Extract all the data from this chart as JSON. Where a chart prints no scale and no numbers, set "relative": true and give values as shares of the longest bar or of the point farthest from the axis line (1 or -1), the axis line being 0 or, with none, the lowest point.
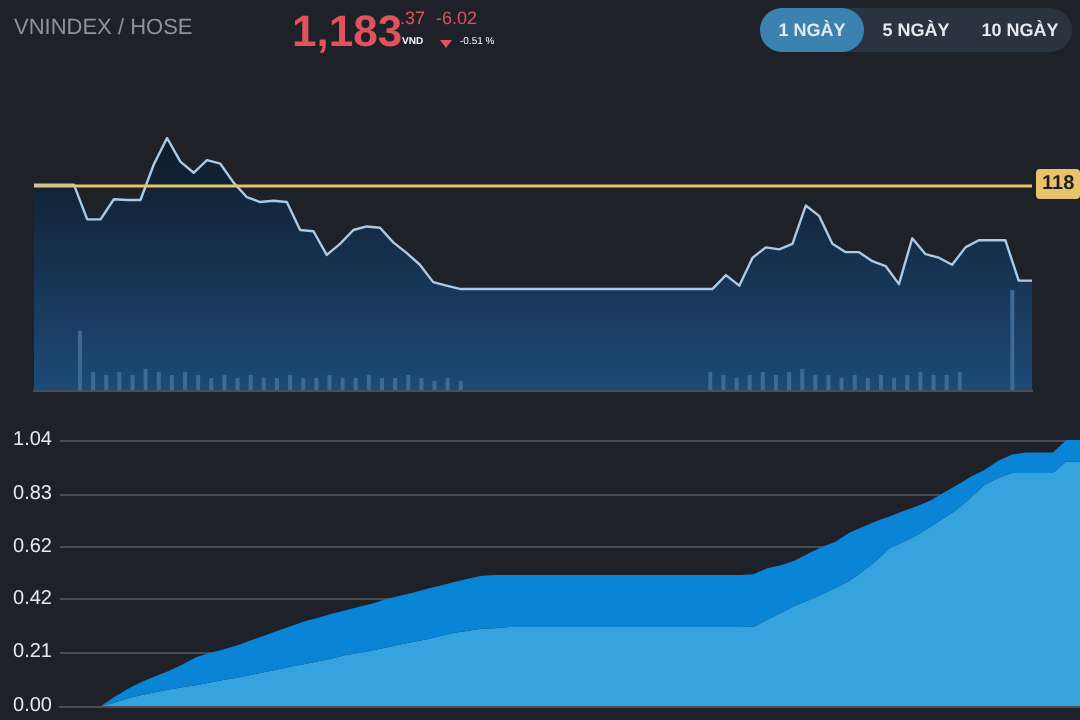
{
  "chart_data": [
    {
      "type": "area",
      "title": "VNINDEX / HOSE",
      "annotations": [
        "1,183",
        ".37",
        "VND",
        "-6.02",
        "-0.51 %",
        "1 NGÀY",
        "5 NGÀY",
        "10 NGÀY",
        {
          "text": "118",
          "y": 0.815
        }
      ],
      "relative": true,
      "tick_labels": false,
      "categories": [
        null,
        null,
        null,
        null,
        null,
        null,
        null,
        null,
        null,
        null,
        null,
        null,
        null,
        null,
        null,
        null,
        null,
        null,
        null,
        null,
        null,
        null,
        null,
        null,
        null,
        null,
        null,
        null,
        null,
        null,
        null,
        null,
        null,
        null,
        null,
        null,
        null,
        null,
        null,
        null,
        null,
        null,
        null,
        null,
        null,
        null,
        null,
        null,
        null,
        null,
        null,
        null,
        null,
        null,
        null,
        null,
        null,
        null,
        null,
        null,
        null,
        null,
        null,
        null,
        null,
        null,
        null,
        null,
        null,
        null,
        null,
        null,
        null,
        null,
        null,
        null
      ],
      "series": [
        {
          "color": "#a9cbe8",
          "values": [
            0.815,
            0.815,
            0.815,
            0.815,
            0.677,
            0.677,
            0.757,
            0.754,
            0.754,
            0.895,
            1,
            0.906,
            0.862,
            0.912,
            0.898,
            0.823,
            0.765,
            0.746,
            0.751,
            0.746,
            0.635,
            0.63,
            0.536,
            0.58,
            0.635,
            0.649,
            0.644,
            0.586,
            0.544,
            0.497,
            0.428,
            0.414,
            0.401,
            0.401,
            0.401,
            0.401,
            0.401,
            0.401,
            0.401,
            0.401,
            0.401,
            0.401,
            0.401,
            0.401,
            0.401,
            0.401,
            0.401,
            0.401,
            0.401,
            0.401,
            0.401,
            0.401,
            0.456,
            0.414,
            0.525,
            0.566,
            0.558,
            0.58,
            0.732,
            0.691,
            0.58,
            0.547,
            0.547,
            0.511,
            0.492,
            0.42,
            0.602,
            0.539,
            0.525,
            0.497,
            0.566,
            0.594,
            0.594,
            0.594,
            0.434,
            0.434
          ]
        }
      ],
      "ref_lines": [
        {
          "axis": "y",
          "value": 0.815,
          "color": "#e8c36a"
        }
      ]
    },
    {
      "type": "bar",
      "relative": true,
      "tick_labels": false,
      "categories": [
        null,
        null,
        null,
        null,
        null,
        null,
        null,
        null,
        null,
        null,
        null,
        null,
        null,
        null,
        null,
        null,
        null,
        null,
        null,
        null,
        null,
        null,
        null,
        null,
        null,
        null,
        null,
        null,
        null,
        null,
        null,
        null,
        null,
        null,
        null,
        null,
        null,
        null,
        null,
        null,
        null,
        null,
        null,
        null,
        null,
        null,
        null,
        null,
        null,
        null,
        null,
        null,
        null,
        null,
        null,
        null,
        null,
        null,
        null,
        null,
        null,
        null,
        null,
        null,
        null,
        null,
        null,
        null,
        null,
        null,
        null,
        null,
        null,
        null,
        null,
        null
      ],
      "series": [
        {
          "color": "#3d6a96",
          "values": [
            null,
            null,
            null,
            0.59,
            0.18,
            0.15,
            0.18,
            0.15,
            0.21,
            0.18,
            0.15,
            0.18,
            0.15,
            0.12,
            0.15,
            0.12,
            0.15,
            0.12,
            0.12,
            0.15,
            0.12,
            0.12,
            0.15,
            0.12,
            0.12,
            0.15,
            0.12,
            0.12,
            0.15,
            0.12,
            0.09,
            0.12,
            0.09,
            null,
            null,
            null,
            null,
            null,
            null,
            null,
            null,
            null,
            null,
            null,
            null,
            null,
            null,
            null,
            null,
            null,
            null,
            0.18,
            0.15,
            0.12,
            0.15,
            0.18,
            0.15,
            0.18,
            0.21,
            0.15,
            0.15,
            0.12,
            0.15,
            0.12,
            0.15,
            0.12,
            0.15,
            0.18,
            0.15,
            0.15,
            0.18,
            null,
            null,
            null,
            1,
            null
          ]
        }
      ]
    },
    {
      "type": "area",
      "stacked": true,
      "grid": "y",
      "tick_labels": "y",
      "ylim": [
        0,
        1.04
      ],
      "yticks": [
        {
          "value": 0,
          "label": "0.00"
        },
        0.21,
        0.42,
        0.62,
        0.83,
        1.04
      ],
      "categories": [
        null,
        null,
        null,
        null,
        null,
        null,
        null,
        null,
        null,
        null,
        null,
        null,
        null,
        null,
        null,
        null,
        null,
        null,
        null,
        null,
        null,
        null,
        null,
        null,
        null,
        null,
        null,
        null,
        null,
        null,
        null,
        null,
        null,
        null,
        null,
        null,
        null,
        null,
        null,
        null,
        null,
        null,
        null,
        null,
        null,
        null,
        null,
        null,
        null,
        null,
        null,
        null,
        null,
        null,
        null,
        null,
        null,
        null,
        null,
        null,
        null,
        null,
        null,
        null,
        null,
        null,
        null,
        null,
        null,
        null,
        null,
        null,
        null,
        null,
        null,
        null
      ],
      "series": [
        {
          "color": "#35a3de",
          "values": [
            0,
            0,
            0,
            0,
            0.013,
            0.03,
            0.043,
            0.054,
            0.065,
            0.073,
            0.081,
            0.092,
            0.102,
            0.11,
            0.121,
            0.132,
            0.143,
            0.154,
            0.164,
            0.175,
            0.186,
            0.199,
            0.207,
            0.218,
            0.229,
            0.24,
            0.251,
            0.261,
            0.275,
            0.286,
            0.294,
            0.302,
            0.304,
            0.309,
            0.309,
            0.309,
            0.309,
            0.309,
            0.309,
            0.309,
            0.309,
            0.309,
            0.309,
            0.309,
            0.309,
            0.309,
            0.309,
            0.309,
            0.309,
            0.309,
            0.309,
            0.31,
            0.337,
            0.364,
            0.391,
            0.412,
            0.436,
            0.461,
            0.488,
            0.525,
            0.568,
            0.617,
            0.641,
            0.668,
            0.7,
            0.735,
            0.77,
            0.816,
            0.865,
            0.892,
            0.911,
            0.911,
            0.911,
            0.911,
            0.956,
            0.956
          ]
        },
        {
          "color": "#0a84d6",
          "values": [
            0,
            0,
            0,
            0,
            0.022,
            0.037,
            0.051,
            0.062,
            0.072,
            0.089,
            0.11,
            0.115,
            0.119,
            0.127,
            0.135,
            0.143,
            0.151,
            0.159,
            0.167,
            0.17,
            0.175,
            0.175,
            0.181,
            0.183,
            0.189,
            0.191,
            0.193,
            0.197,
            0.196,
            0.199,
            0.204,
            0.207,
            0.208,
            0.203,
            0.203,
            0.203,
            0.203,
            0.203,
            0.203,
            0.203,
            0.203,
            0.203,
            0.203,
            0.203,
            0.203,
            0.203,
            0.203,
            0.203,
            0.203,
            0.203,
            0.203,
            0.205,
            0.202,
            0.186,
            0.177,
            0.183,
            0.186,
            0.18,
            0.188,
            0.175,
            0.154,
            0.124,
            0.121,
            0.113,
            0.103,
            0.1,
            0.095,
            0.081,
            0.059,
            0.067,
            0.072,
            0.08,
            0.08,
            0.08,
            0.084,
            0.084
          ]
        }
      ]
    }
  ]
}
